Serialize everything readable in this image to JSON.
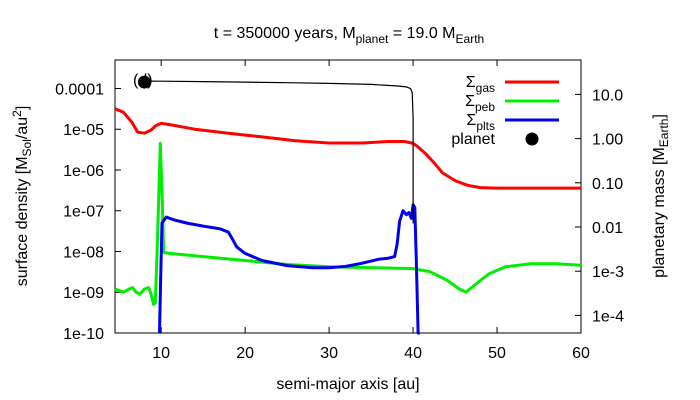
{
  "chart_data": {
    "type": "line",
    "title": {
      "t_prefix": "t = 350000 years, M",
      "t_sub1": "planet",
      "t_mid": " = 19.0 M",
      "t_sub2": "Earth"
    },
    "panel_label": "(d)",
    "xlabel": "semi-major axis [au]",
    "ylabel_left": {
      "main": "surface density [M",
      "sub": "Sol",
      "mid": "/au",
      "sup": "2",
      "end": "]"
    },
    "ylabel_right": {
      "main": "planetary mass [M",
      "sub": "Earth",
      "end": "]"
    },
    "x_scale": "linear",
    "xlim": [
      4.5,
      60
    ],
    "x_ticks": [
      10,
      20,
      30,
      40,
      50,
      60
    ],
    "x_tick_labels": [
      "10",
      "20",
      "30",
      "40",
      "50",
      "60"
    ],
    "y_scale": "log",
    "ylim": [
      1e-10,
      0.0005
    ],
    "y_ticks": [
      1e-10,
      1e-09,
      1e-08,
      1e-07,
      1e-06,
      1e-05,
      0.0001
    ],
    "y_tick_labels": [
      "1e-10",
      "1e-09",
      "1e-08",
      "1e-07",
      "1e-06",
      "1e-05",
      "0.0001"
    ],
    "y2_scale": "log",
    "y2lim": [
      4e-05,
      60
    ],
    "y2_ticks": [
      0.0001,
      0.001,
      0.01,
      0.1,
      1.0,
      10.0
    ],
    "y2_tick_labels": [
      "1e-4",
      "1e-3",
      "0.01",
      "0.10",
      "1.00",
      "10.0"
    ],
    "legend_position": "top-right",
    "series": [
      {
        "name": "gas",
        "legend_main": "Σ",
        "legend_sub": "gas",
        "color": "#ff0000",
        "axis": "left",
        "x": [
          4.5,
          5.5,
          6.5,
          7.2,
          8.0,
          8.8,
          9.3,
          10.0,
          11.0,
          14.0,
          18.0,
          22.0,
          26.0,
          30.0,
          34.0,
          37.0,
          39.0,
          40.0,
          40.5,
          41.5,
          42.5,
          43.5,
          45.0,
          46.5,
          48.0,
          50.0,
          55.0,
          60.0
        ],
        "y": [
          3.2e-05,
          2.6e-05,
          1.5e-05,
          8.5e-06,
          8e-06,
          9.5e-06,
          1.2e-05,
          1.4e-05,
          1.3e-05,
          1e-05,
          8e-06,
          6.5e-06,
          5.2e-06,
          4.6e-06,
          4.6e-06,
          5e-06,
          5e-06,
          4.5e-06,
          3.8e-06,
          2.5e-06,
          1.5e-06,
          8.5e-07,
          5.5e-07,
          4.2e-07,
          3.7e-07,
          3.6e-07,
          3.6e-07,
          3.6e-07
        ]
      },
      {
        "name": "peb",
        "legend_main": "Σ",
        "legend_sub": "peb",
        "color": "#00ee00",
        "axis": "left",
        "x": [
          4.5,
          5.5,
          6.2,
          6.6,
          7.0,
          7.5,
          8.0,
          8.5,
          8.8,
          9.1,
          9.3,
          9.5,
          9.7,
          9.9,
          10.1,
          10.3,
          11.0,
          15.0,
          20.0,
          25.0,
          30.0,
          35.0,
          40.0,
          42.0,
          44.0,
          45.5,
          46.3,
          47.5,
          49.0,
          51.0,
          54.0,
          57.0,
          60.0
        ],
        "y": [
          1.2e-09,
          1e-09,
          1.2e-09,
          1.3e-09,
          1e-09,
          9e-10,
          1.2e-09,
          1.3e-09,
          9e-10,
          5e-10,
          5.5e-10,
          8e-09,
          2e-07,
          4.5e-06,
          3e-07,
          9.5e-09,
          9e-09,
          7.5e-09,
          6e-09,
          4.8e-09,
          4.2e-09,
          4e-09,
          3.8e-09,
          3.2e-09,
          2e-09,
          1.2e-09,
          1e-09,
          1.6e-09,
          2.8e-09,
          4.2e-09,
          5e-09,
          5e-09,
          4.6e-09
        ]
      },
      {
        "name": "plts",
        "legend_main": "Σ",
        "legend_sub": "plts",
        "color": "#0000ee",
        "axis": "left",
        "x": [
          9.8,
          9.95,
          10.1,
          10.6,
          11.5,
          13.0,
          15.0,
          17.0,
          18.0,
          18.5,
          19.0,
          20.0,
          22.0,
          25.0,
          28.0,
          30.0,
          32.0,
          34.0,
          36.0,
          37.0,
          37.8,
          38.1,
          38.4,
          38.8,
          39.2,
          39.5,
          39.8,
          40.0,
          40.2,
          40.4,
          40.6,
          40.8
        ],
        "y": [
          1e-10,
          3e-09,
          5e-08,
          7e-08,
          6e-08,
          5e-08,
          4.2e-08,
          3.6e-08,
          3e-08,
          2e-08,
          1.3e-08,
          9e-09,
          6e-09,
          4.5e-09,
          4e-09,
          4e-09,
          4.3e-09,
          5.2e-09,
          6.5e-09,
          6.8e-09,
          7.5e-09,
          1.5e-08,
          5.5e-08,
          1e-07,
          8e-08,
          9e-08,
          6.5e-08,
          1.4e-07,
          1.2e-07,
          5e-09,
          1e-10,
          1e-10
        ]
      },
      {
        "name": "planet track",
        "color": "#000000",
        "axis": "right",
        "x": [
          8.0,
          10.0,
          15.0,
          20.0,
          25.0,
          30.0,
          35.0,
          38.0,
          39.2,
          39.7,
          39.9,
          40.0,
          40.0
        ],
        "y": [
          20.0,
          19.9,
          19.5,
          19.0,
          18.4,
          17.7,
          16.8,
          15.6,
          14.8,
          13.5,
          11.0,
          3.0,
          0.012
        ]
      },
      {
        "name": "planet",
        "legend_main": "planet",
        "color": "#000000",
        "axis": "right",
        "x": [
          8.0
        ],
        "y": [
          19.0
        ]
      }
    ]
  }
}
